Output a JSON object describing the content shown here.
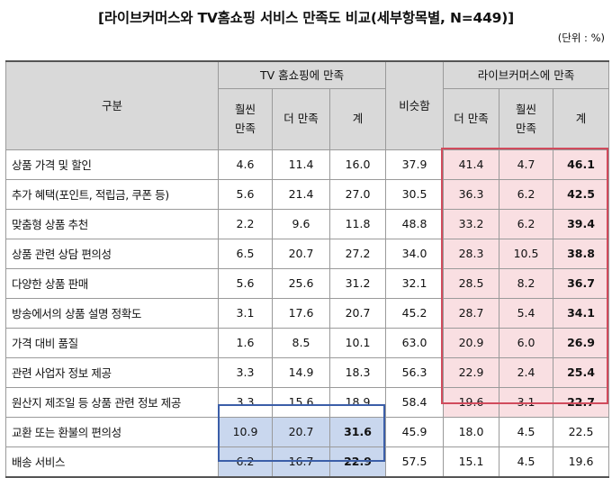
{
  "title": "[라이브커머스와 TV홈쇼핑 서비스 만족도 비교(세부항목별, N=449)]",
  "unit": "(단위 : %)",
  "headers": {
    "category": "구분",
    "tv_group": "TV 홈쇼핑에 만족",
    "similar": "비슷함",
    "live_group": "라이브커머스에 만족",
    "much_l1": "훨씬",
    "much_l2": "만족",
    "more": "더 만족",
    "total": "계"
  },
  "rows": [
    {
      "label": "상품 가격 및 할인",
      "tv_much": "4.6",
      "tv_more": "11.4",
      "tv_total": "16.0",
      "similar": "37.9",
      "live_more": "41.4",
      "live_much": "4.7",
      "live_total": "46.1"
    },
    {
      "label": "추가 혜택(포인트, 적립금, 쿠폰 등)",
      "tv_much": "5.6",
      "tv_more": "21.4",
      "tv_total": "27.0",
      "similar": "30.5",
      "live_more": "36.3",
      "live_much": "6.2",
      "live_total": "42.5"
    },
    {
      "label": "맞춤형 상품 추천",
      "tv_much": "2.2",
      "tv_more": "9.6",
      "tv_total": "11.8",
      "similar": "48.8",
      "live_more": "33.2",
      "live_much": "6.2",
      "live_total": "39.4"
    },
    {
      "label": "상품 관련 상담 편의성",
      "tv_much": "6.5",
      "tv_more": "20.7",
      "tv_total": "27.2",
      "similar": "34.0",
      "live_more": "28.3",
      "live_much": "10.5",
      "live_total": "38.8"
    },
    {
      "label": "다양한 상품 판매",
      "tv_much": "5.6",
      "tv_more": "25.6",
      "tv_total": "31.2",
      "similar": "32.1",
      "live_more": "28.5",
      "live_much": "8.2",
      "live_total": "36.7"
    },
    {
      "label": "방송에서의 상품 설명 정확도",
      "tv_much": "3.1",
      "tv_more": "17.6",
      "tv_total": "20.7",
      "similar": "45.2",
      "live_more": "28.7",
      "live_much": "5.4",
      "live_total": "34.1"
    },
    {
      "label": "가격 대비 품질",
      "tv_much": "1.6",
      "tv_more": "8.5",
      "tv_total": "10.1",
      "similar": "63.0",
      "live_more": "20.9",
      "live_much": "6.0",
      "live_total": "26.9"
    },
    {
      "label": "관련 사업자 정보 제공",
      "tv_much": "3.3",
      "tv_more": "14.9",
      "tv_total": "18.3",
      "similar": "56.3",
      "live_more": "22.9",
      "live_much": "2.4",
      "live_total": "25.4"
    },
    {
      "label": "원산지 제조일 등 상품 관련 정보 제공",
      "tv_much": "3.3",
      "tv_more": "15.6",
      "tv_total": "18.9",
      "similar": "58.4",
      "live_more": "19.6",
      "live_much": "3.1",
      "live_total": "22.7"
    },
    {
      "label": "교환 또는 환불의 편의성",
      "tv_much": "10.9",
      "tv_more": "20.7",
      "tv_total": "31.6",
      "similar": "45.9",
      "live_more": "18.0",
      "live_much": "4.5",
      "live_total": "22.5"
    },
    {
      "label": "배송 서비스",
      "tv_much": "6.2",
      "tv_more": "16.7",
      "tv_total": "22.9",
      "similar": "57.5",
      "live_more": "15.1",
      "live_much": "4.5",
      "live_total": "19.6"
    }
  ],
  "highlight_colors": {
    "live": "#d14b5c",
    "tv": "#3b5ea8"
  }
}
